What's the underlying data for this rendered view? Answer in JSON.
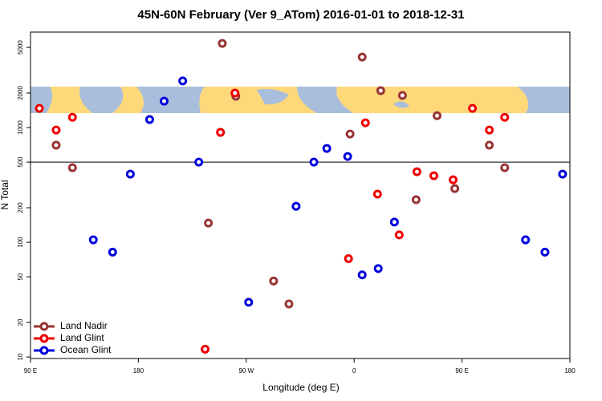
{
  "chart_data": {
    "type": "scatter",
    "title": "45N-60N February (Ver 9_ATom)   2016-01-01 to 2018-12-31",
    "xlabel": "Longitude (deg E)",
    "ylabel": "N Total",
    "xlim": [
      -270,
      180
    ],
    "xticks": [
      {
        "value": -270,
        "label": "90 E"
      },
      {
        "value": -180,
        "label": "180"
      },
      {
        "value": -90,
        "label": "90 W"
      },
      0,
      {
        "value": 90,
        "label": "90 E"
      },
      180
    ],
    "ylim": [
      9.7,
      6800
    ],
    "yscale": "log",
    "yticks": [
      10,
      20,
      50,
      100,
      200,
      500,
      1000,
      2000,
      5000
    ],
    "reference_line": 500,
    "legend": "lower left",
    "series": [
      {
        "name": "Land Nadir",
        "color": "#993333",
        "x": [
          -248.6,
          -235,
          -110,
          -121.6,
          -98.7,
          -67.2,
          -54.4,
          -3.4,
          6.7,
          22.2,
          40.3,
          51.7,
          69.2,
          84,
          112.8,
          125.6
        ],
        "values": [
          702,
          447,
          5420,
          147,
          1875,
          46,
          29,
          879,
          4120,
          2100,
          1905,
          235,
          1270,
          294,
          702,
          447
        ]
      },
      {
        "name": "Land Glint",
        "color": "#ee0000",
        "x": [
          -262.6,
          -248.6,
          -235,
          -111.5,
          -99.4,
          -124.3,
          -4.7,
          9.4,
          19.5,
          37.6,
          52.4,
          66.5,
          82.6,
          98.7,
          112.8,
          125.6
        ],
        "values": [
          1470,
          952,
          1230,
          908,
          2000,
          11.7,
          72,
          1100,
          263,
          116,
          412,
          380,
          351,
          1470,
          952,
          1230
        ]
      },
      {
        "name": "Ocean Glint",
        "color": "#0000dd",
        "x": [
          -217.6,
          -201.5,
          -186.7,
          -170.6,
          -158.5,
          -143,
          -129.6,
          -88,
          -48.4,
          -33.6,
          -22.8,
          -5.4,
          6.7,
          20.1,
          33.6,
          143,
          159.2,
          173.9
        ],
        "values": [
          105,
          82,
          393,
          1175,
          1700,
          2550,
          500,
          30,
          206,
          500,
          658,
          560,
          52,
          59,
          150,
          105,
          82,
          393
        ]
      }
    ]
  }
}
